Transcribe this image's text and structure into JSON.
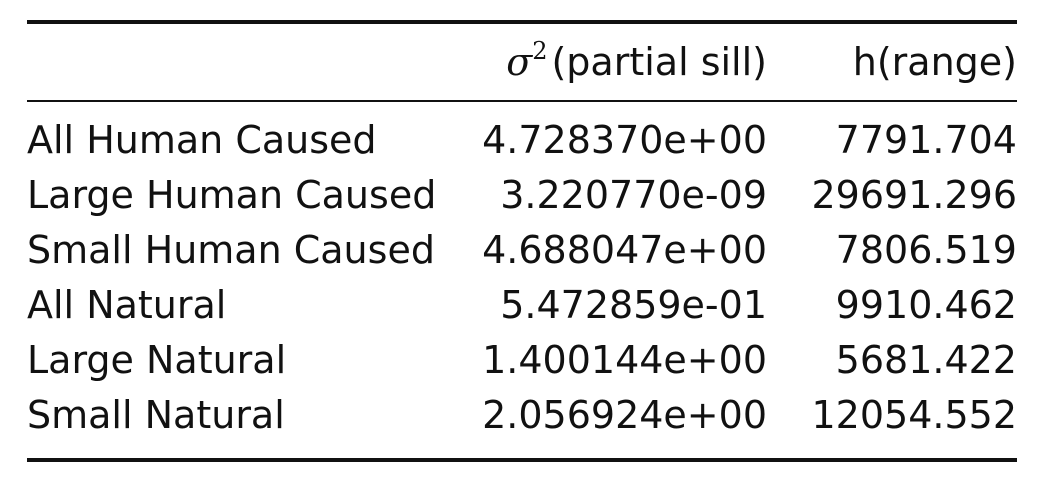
{
  "table": {
    "headers": {
      "label": "",
      "sill_symbol": "σ",
      "sill_exponent": "2",
      "sill": "(partial sill)",
      "range": "h(range)"
    },
    "rows": [
      {
        "label": "All Human Caused",
        "sill": "4.728370e+00",
        "range": "7791.704"
      },
      {
        "label": "Large Human Caused",
        "sill": "3.220770e-09",
        "range": "29691.296"
      },
      {
        "label": "Small Human Caused",
        "sill": "4.688047e+00",
        "range": "7806.519"
      },
      {
        "label": "All Natural",
        "sill": "5.472859e-01",
        "range": "9910.462"
      },
      {
        "label": "Large Natural",
        "sill": "1.400144e+00",
        "range": "5681.422"
      },
      {
        "label": "Small Natural",
        "sill": "2.056924e+00",
        "range": "12054.552"
      }
    ]
  }
}
